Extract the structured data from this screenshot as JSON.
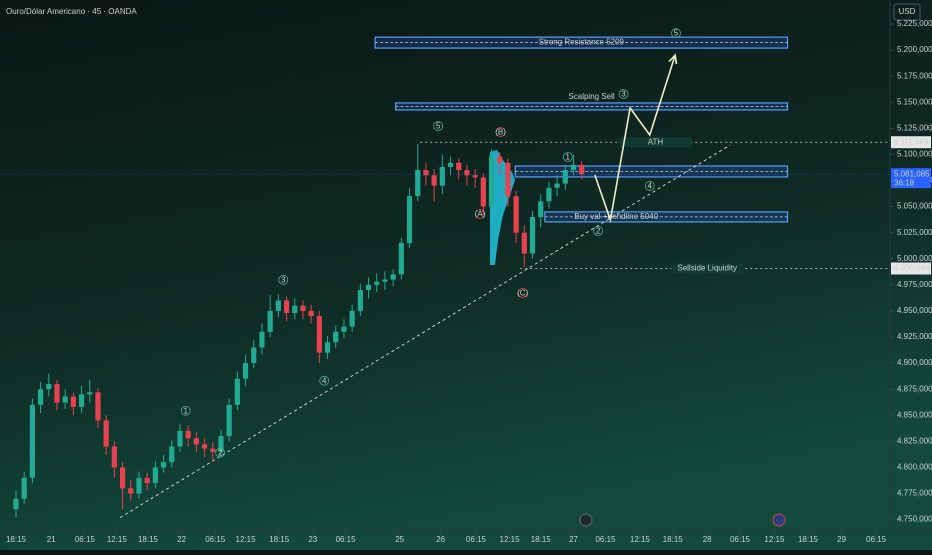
{
  "chart_data": {
    "type": "candlestick",
    "title": "Ouro/Dólar Americano · 45 · OANDA",
    "currency": "USD",
    "colors": {
      "up": "#22ab94",
      "down": "#e8414f"
    },
    "xlim": [
      -1.95,
      106.6
    ],
    "ylim": [
      4740,
      5248
    ],
    "xticks": [
      {
        "value": 0,
        "label": "18:15"
      },
      {
        "value": 4.3,
        "label": "21"
      },
      {
        "value": 8.4,
        "label": "06:15"
      },
      {
        "value": 12.3,
        "label": "12:15"
      },
      {
        "value": 16.1,
        "label": "18:15"
      },
      {
        "value": 20.2,
        "label": "22"
      },
      {
        "value": 24.3,
        "label": "06:15"
      },
      {
        "value": 28.0,
        "label": "12:15"
      },
      {
        "value": 32.1,
        "label": "18:15"
      },
      {
        "value": 36.2,
        "label": "23"
      },
      {
        "value": 40.2,
        "label": "06:15"
      },
      {
        "value": 46.8,
        "label": "25"
      },
      {
        "value": 51.8,
        "label": "26"
      },
      {
        "value": 56.1,
        "label": "06:15"
      },
      {
        "value": 60.2,
        "label": "12:15"
      },
      {
        "value": 64.0,
        "label": "18:15"
      },
      {
        "value": 68.0,
        "label": "27"
      },
      {
        "value": 71.9,
        "label": "06:15"
      },
      {
        "value": 76.1,
        "label": "12:15"
      },
      {
        "value": 80.1,
        "label": "18:15"
      },
      {
        "value": 84.3,
        "label": "28"
      },
      {
        "value": 88.3,
        "label": "06:15"
      },
      {
        "value": 92.5,
        "label": "12:15"
      },
      {
        "value": 96.6,
        "label": "18:15"
      },
      {
        "value": 100.7,
        "label": "29"
      },
      {
        "value": 104.9,
        "label": "06:15"
      }
    ],
    "yticks": [
      {
        "value": 4750,
        "label": "4.750,000"
      },
      {
        "value": 4775,
        "label": "4.775,000"
      },
      {
        "value": 4800,
        "label": "4.800,000"
      },
      {
        "value": 4825,
        "label": "4.825,000"
      },
      {
        "value": 4850,
        "label": "4.850,000"
      },
      {
        "value": 4875,
        "label": "4.875,000"
      },
      {
        "value": 4900,
        "label": "4.900,000"
      },
      {
        "value": 4925,
        "label": "4.925,000"
      },
      {
        "value": 4950,
        "label": "4.950,000"
      },
      {
        "value": 4975,
        "label": "4.975,000"
      },
      {
        "value": 5000,
        "label": "5.000,000"
      },
      {
        "value": 5025,
        "label": "5.025,000"
      },
      {
        "value": 5050,
        "label": "5.050,000"
      },
      {
        "value": 5075,
        "label": "5.075,000"
      },
      {
        "value": 5100,
        "label": "5.100,000"
      },
      {
        "value": 5125,
        "label": "5.125,000"
      },
      {
        "value": 5150,
        "label": "5.150,000"
      },
      {
        "value": 5175,
        "label": "5.175,000"
      },
      {
        "value": 5200,
        "label": "5.200,000"
      },
      {
        "value": 5225,
        "label": "5.225,000"
      }
    ],
    "open": [
      4760,
      4770,
      4790,
      4860,
      4875,
      4880,
      4862,
      4868,
      4858,
      4870,
      4872,
      4845,
      4820,
      4800,
      4780,
      4775,
      4790,
      4785,
      4800,
      4805,
      4820,
      4835,
      4828,
      4822,
      4818,
      4815,
      4830,
      4860,
      4885,
      4900,
      4915,
      4930,
      4950,
      4960,
      4948,
      4955,
      4950,
      4945,
      4910,
      4920,
      4930,
      4935,
      4950,
      4970,
      4975,
      4978,
      4980,
      4985,
      5015,
      5060,
      5085,
      5080,
      5070,
      5088,
      5092,
      5085,
      5080,
      5078,
      5050,
      5098,
      5092,
      5060,
      5025,
      5005,
      5040,
      5055,
      5068,
      5072,
      5085,
      5090
    ],
    "high": [
      4778,
      4796,
      4866,
      4882,
      4890,
      4884,
      4875,
      4872,
      4878,
      4884,
      4876,
      4850,
      4825,
      4805,
      4788,
      4796,
      4795,
      4806,
      4812,
      4826,
      4842,
      4840,
      4834,
      4828,
      4824,
      4836,
      4866,
      4892,
      4908,
      4922,
      4938,
      4965,
      4966,
      4964,
      4962,
      4960,
      4956,
      4950,
      4926,
      4936,
      4942,
      4956,
      4976,
      4982,
      4986,
      4988,
      4990,
      5020,
      5068,
      5110,
      5092,
      5086,
      5100,
      5098,
      5096,
      5090,
      5086,
      5082,
      5105,
      5102,
      5096,
      5065,
      5032,
      5046,
      5062,
      5074,
      5080,
      5090,
      5100,
      5094
    ],
    "low": [
      4752,
      4765,
      4785,
      4852,
      4868,
      4855,
      4856,
      4850,
      4852,
      4862,
      4838,
      4812,
      4790,
      4760,
      4768,
      4770,
      4778,
      4780,
      4795,
      4800,
      4815,
      4820,
      4815,
      4810,
      4805,
      4810,
      4825,
      4855,
      4878,
      4895,
      4908,
      4925,
      4944,
      4940,
      4942,
      4942,
      4938,
      4900,
      4904,
      4914,
      4924,
      4930,
      4945,
      4962,
      4968,
      4970,
      4974,
      4980,
      5010,
      5055,
      5070,
      5055,
      5062,
      5080,
      5076,
      5070,
      5068,
      5042,
      5046,
      5080,
      5050,
      5015,
      4992,
      5000,
      5030,
      5048,
      5060,
      5066,
      5080,
      5076
    ],
    "close": [
      4770,
      4790,
      4860,
      4875,
      4880,
      4862,
      4868,
      4858,
      4870,
      4872,
      4845,
      4820,
      4800,
      4780,
      4775,
      4790,
      4785,
      4800,
      4805,
      4820,
      4835,
      4828,
      4822,
      4818,
      4815,
      4830,
      4860,
      4885,
      4900,
      4915,
      4930,
      4950,
      4960,
      4948,
      4955,
      4950,
      4945,
      4910,
      4920,
      4930,
      4935,
      4950,
      4970,
      4975,
      4978,
      4980,
      4985,
      5015,
      5060,
      5085,
      5080,
      5070,
      5088,
      5092,
      5085,
      5080,
      5078,
      5050,
      5098,
      5092,
      5060,
      5025,
      5005,
      5040,
      5055,
      5068,
      5072,
      5085,
      5090,
      5081
    ],
    "zones": [
      {
        "label": "Strong Resistance 5209",
        "top": 5212.4,
        "bottom": 5201.9,
        "x0": 43.8,
        "x1": 94.1
      },
      {
        "label": "Scalping Sell",
        "top": 5149.3,
        "bottom": 5142.6,
        "x0": 46.3,
        "x1": 94.1
      },
      {
        "top": 5088.9,
        "bottom": 5078.4,
        "x0": 60.9,
        "x1": 94.1
      },
      {
        "label": "Buy val +trendline 5040",
        "top": 5044.9,
        "bottom": 5035.3,
        "x0": 64.5,
        "x1": 94.1
      }
    ],
    "levels": [
      {
        "value": 5111.669,
        "price_label": "5.111,669",
        "label": "ATH",
        "x0": 49.3,
        "label_x": 78
      },
      {
        "value": 4990.644,
        "price_label": "4.990,644",
        "label": "Sellside Liquidity",
        "x0": 61.5,
        "label_x": 84.3
      }
    ],
    "last_price": {
      "value": 5081.085,
      "label": "5.081,085",
      "countdown": "36:18"
    },
    "trendline": {
      "x": [
        12.7,
        87.1
      ],
      "y": [
        4751.9,
        5109.0
      ]
    },
    "projection": {
      "x": [
        70.6,
        72.5,
        74.9,
        77.3,
        80.4
      ],
      "y": [
        5080.3,
        5037.2,
        5144.5,
        5118.6,
        5195.2
      ]
    },
    "waves": [
      {
        "label": "1",
        "x": 20.7,
        "y": 4854.3,
        "color": "#4caf8f"
      },
      {
        "label": "2",
        "x": 24.9,
        "y": 4814.1,
        "color": "#4caf8f"
      },
      {
        "label": "3",
        "x": 32.6,
        "y": 4979.8,
        "color": "#4caf8f"
      },
      {
        "label": "4",
        "x": 37.6,
        "y": 4883.1,
        "color": "#4caf8f"
      },
      {
        "label": "5",
        "x": 51.5,
        "y": 5127.2,
        "color": "#4caf8f"
      },
      {
        "label": "(A)",
        "x": 56.6,
        "y": 5042.9,
        "color": "#e8414f"
      },
      {
        "label": "(B)",
        "x": 59.1,
        "y": 5121.5,
        "color": "#e8414f"
      },
      {
        "label": "(C)",
        "x": 61.8,
        "y": 4967.3,
        "color": "#e8414f"
      },
      {
        "label": "1",
        "x": 67.3,
        "y": 5097.5,
        "color": "#4caf8f"
      },
      {
        "label": "2",
        "x": 71.0,
        "y": 5026.7,
        "color": "#4caf8f"
      },
      {
        "label": "3",
        "x": 74.1,
        "y": 5157.9,
        "color": "#4caf8f"
      },
      {
        "label": "4",
        "x": 77.3,
        "y": 5069.8,
        "color": "#4caf8f"
      },
      {
        "label": "5",
        "x": 80.5,
        "y": 5216.3,
        "color": "#4caf8f"
      }
    ]
  }
}
